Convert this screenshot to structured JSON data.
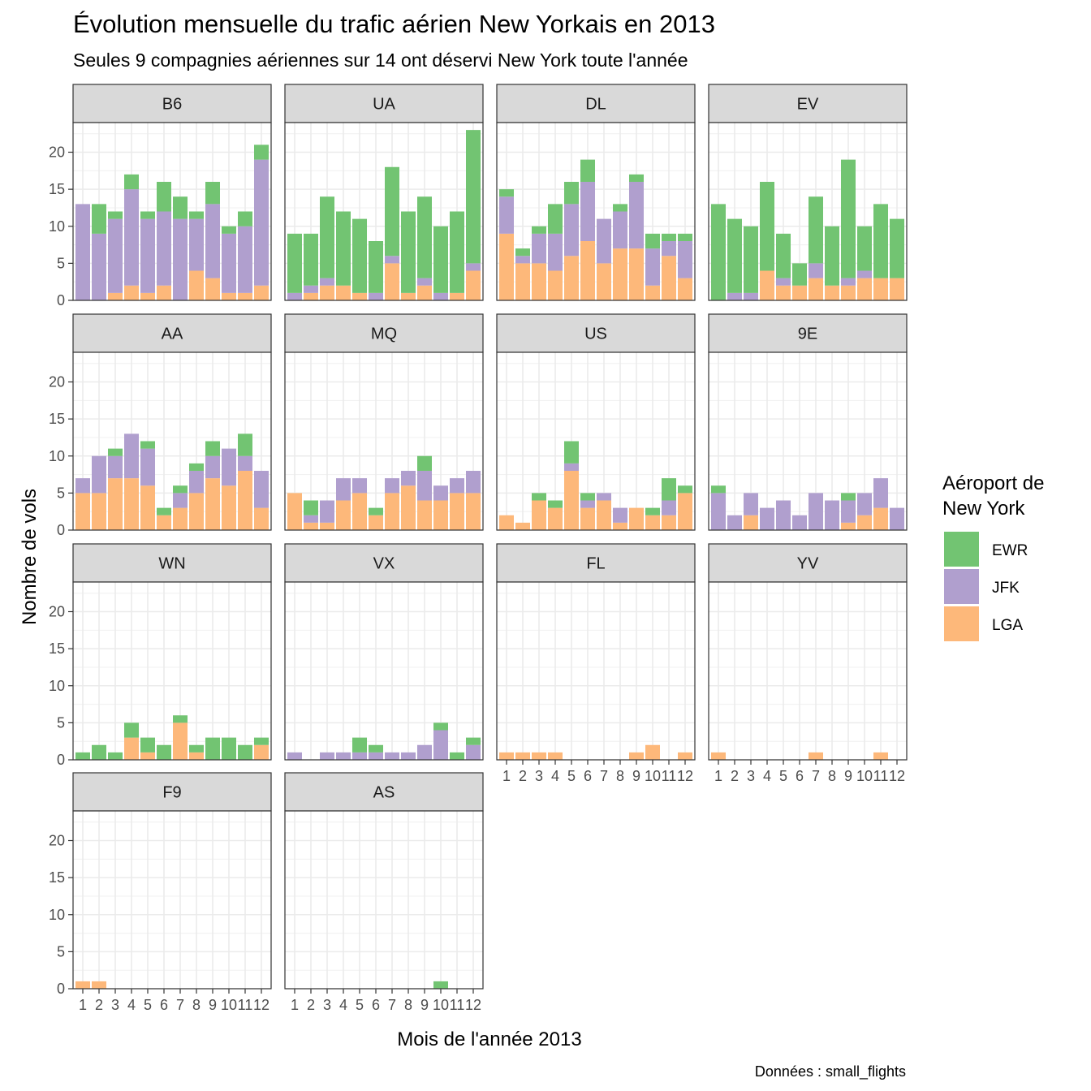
{
  "chart_data": {
    "type": "bar",
    "stacked": true,
    "faceted": true,
    "title": "Évolution mensuelle du trafic aérien New Yorkais en 2013",
    "subtitle": "Seules 9 compagnies aériennes sur 14 ont déservi New York toute l'année",
    "xlabel": "Mois de l'année 2013",
    "ylabel": "Nombre de vols",
    "caption": "Données : small_flights",
    "categories": [
      1,
      2,
      3,
      4,
      5,
      6,
      7,
      8,
      9,
      10,
      11,
      12
    ],
    "x_tick_labels": [
      "1",
      "2",
      "3",
      "4",
      "5",
      "6",
      "7",
      "8",
      "9",
      "10",
      "11",
      "12"
    ],
    "y_ticks": [
      0,
      5,
      10,
      15,
      20
    ],
    "y_tick_labels": [
      "0",
      "5",
      "10",
      "15",
      "20"
    ],
    "ylim": [
      0,
      24
    ],
    "grid": true,
    "legend": {
      "title_lines": [
        "Aéroport de",
        "New York"
      ],
      "position": "right",
      "entries": [
        {
          "name": "EWR",
          "color": "#72c472"
        },
        {
          "name": "JFK",
          "color": "#b09fce"
        },
        {
          "name": "LGA",
          "color": "#fdb87a"
        }
      ]
    },
    "series_order": [
      "LGA",
      "JFK",
      "EWR"
    ],
    "colors": {
      "EWR": "#72c472",
      "JFK": "#b09fce",
      "LGA": "#fdb87a"
    },
    "facets": [
      {
        "carrier": "B6",
        "LGA": [
          0,
          0,
          1,
          2,
          1,
          2,
          0,
          4,
          3,
          1,
          1,
          2
        ],
        "JFK": [
          13,
          9,
          10,
          13,
          10,
          10,
          11,
          7,
          10,
          8,
          9,
          17
        ],
        "EWR": [
          0,
          4,
          1,
          2,
          1,
          4,
          3,
          1,
          3,
          1,
          2,
          2
        ]
      },
      {
        "carrier": "UA",
        "LGA": [
          0,
          1,
          2,
          2,
          1,
          0,
          5,
          1,
          2,
          0,
          1,
          4
        ],
        "JFK": [
          1,
          1,
          1,
          0,
          0,
          1,
          1,
          0,
          1,
          1,
          0,
          1
        ],
        "EWR": [
          8,
          7,
          11,
          10,
          10,
          7,
          12,
          11,
          11,
          9,
          11,
          18
        ]
      },
      {
        "carrier": "DL",
        "LGA": [
          9,
          5,
          5,
          4,
          6,
          8,
          5,
          7,
          7,
          2,
          6,
          3
        ],
        "JFK": [
          5,
          1,
          4,
          5,
          7,
          8,
          6,
          5,
          9,
          5,
          2,
          5
        ],
        "EWR": [
          1,
          1,
          1,
          4,
          3,
          3,
          0,
          1,
          1,
          2,
          1,
          1
        ]
      },
      {
        "carrier": "EV",
        "LGA": [
          0,
          0,
          0,
          4,
          2,
          2,
          3,
          2,
          2,
          3,
          3,
          3
        ],
        "JFK": [
          0,
          1,
          1,
          0,
          1,
          0,
          2,
          0,
          1,
          1,
          0,
          0
        ],
        "EWR": [
          13,
          10,
          9,
          12,
          6,
          3,
          9,
          8,
          16,
          6,
          10,
          8
        ]
      },
      {
        "carrier": "AA",
        "LGA": [
          5,
          5,
          7,
          7,
          6,
          2,
          3,
          5,
          7,
          6,
          8,
          3
        ],
        "JFK": [
          2,
          5,
          3,
          6,
          5,
          0,
          2,
          3,
          3,
          5,
          2,
          5
        ],
        "EWR": [
          0,
          0,
          1,
          0,
          1,
          1,
          1,
          1,
          2,
          0,
          3,
          0
        ]
      },
      {
        "carrier": "MQ",
        "LGA": [
          5,
          1,
          1,
          4,
          5,
          2,
          5,
          6,
          4,
          4,
          5,
          5
        ],
        "JFK": [
          0,
          1,
          3,
          3,
          2,
          0,
          2,
          2,
          4,
          2,
          2,
          3
        ],
        "EWR": [
          0,
          2,
          0,
          0,
          0,
          1,
          0,
          0,
          2,
          0,
          0,
          0
        ]
      },
      {
        "carrier": "US",
        "LGA": [
          2,
          1,
          4,
          3,
          8,
          3,
          4,
          1,
          3,
          2,
          2,
          5
        ],
        "JFK": [
          0,
          0,
          0,
          0,
          1,
          1,
          1,
          2,
          0,
          0,
          2,
          0
        ],
        "EWR": [
          0,
          0,
          1,
          1,
          3,
          1,
          0,
          0,
          0,
          1,
          3,
          1
        ]
      },
      {
        "carrier": "9E",
        "LGA": [
          0,
          0,
          2,
          0,
          0,
          0,
          0,
          0,
          1,
          2,
          3,
          0
        ],
        "JFK": [
          5,
          2,
          3,
          3,
          4,
          2,
          5,
          4,
          3,
          3,
          4,
          3
        ],
        "EWR": [
          1,
          0,
          0,
          0,
          0,
          0,
          0,
          0,
          1,
          0,
          0,
          0
        ]
      },
      {
        "carrier": "WN",
        "LGA": [
          0,
          0,
          0,
          3,
          1,
          0,
          5,
          1,
          0,
          0,
          0,
          2
        ],
        "JFK": [
          0,
          0,
          0,
          0,
          0,
          0,
          0,
          0,
          0,
          0,
          0,
          0
        ],
        "EWR": [
          1,
          2,
          1,
          2,
          2,
          2,
          1,
          1,
          3,
          3,
          2,
          1
        ]
      },
      {
        "carrier": "VX",
        "LGA": [
          0,
          0,
          0,
          0,
          0,
          0,
          0,
          0,
          0,
          0,
          0,
          0
        ],
        "JFK": [
          1,
          0,
          1,
          1,
          1,
          1,
          1,
          1,
          2,
          4,
          0,
          2
        ],
        "EWR": [
          0,
          0,
          0,
          0,
          2,
          1,
          0,
          0,
          0,
          1,
          1,
          1
        ]
      },
      {
        "carrier": "FL",
        "LGA": [
          1,
          1,
          1,
          1,
          0,
          0,
          0,
          0,
          1,
          2,
          0,
          1
        ],
        "JFK": [
          0,
          0,
          0,
          0,
          0,
          0,
          0,
          0,
          0,
          0,
          0,
          0
        ],
        "EWR": [
          0,
          0,
          0,
          0,
          0,
          0,
          0,
          0,
          0,
          0,
          0,
          0
        ]
      },
      {
        "carrier": "YV",
        "LGA": [
          1,
          0,
          0,
          0,
          0,
          0,
          1,
          0,
          0,
          0,
          1,
          0
        ],
        "JFK": [
          0,
          0,
          0,
          0,
          0,
          0,
          0,
          0,
          0,
          0,
          0,
          0
        ],
        "EWR": [
          0,
          0,
          0,
          0,
          0,
          0,
          0,
          0,
          0,
          0,
          0,
          0
        ]
      },
      {
        "carrier": "F9",
        "LGA": [
          1,
          1,
          0,
          0,
          0,
          0,
          0,
          0,
          0,
          0,
          0,
          0
        ],
        "JFK": [
          0,
          0,
          0,
          0,
          0,
          0,
          0,
          0,
          0,
          0,
          0,
          0
        ],
        "EWR": [
          0,
          0,
          0,
          0,
          0,
          0,
          0,
          0,
          0,
          0,
          0,
          0
        ]
      },
      {
        "carrier": "AS",
        "LGA": [
          0,
          0,
          0,
          0,
          0,
          0,
          0,
          0,
          0,
          0,
          0,
          0
        ],
        "JFK": [
          0,
          0,
          0,
          0,
          0,
          0,
          0,
          0,
          0,
          0,
          0,
          0
        ],
        "EWR": [
          0,
          0,
          0,
          0,
          0,
          0,
          0,
          0,
          0,
          1,
          0,
          0
        ]
      }
    ]
  }
}
